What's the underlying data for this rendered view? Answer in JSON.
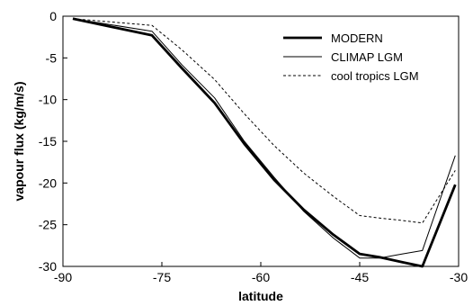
{
  "chart_data": {
    "type": "line",
    "title": "",
    "xlabel": "latitude",
    "ylabel": "vapour flux (kg/m/s)",
    "xlim": [
      -90,
      -30
    ],
    "ylim": [
      -30,
      0
    ],
    "xticks": [
      -90,
      -75,
      -60,
      -45,
      -30
    ],
    "yticks": [
      0,
      -5,
      -10,
      -15,
      -20,
      -25,
      -30
    ],
    "grid": false,
    "legend_position": "top-right",
    "series": [
      {
        "name": "MODERN",
        "style": "thick-solid",
        "color": "#000000",
        "x": [
          -88.5,
          -76.5,
          -72,
          -67,
          -62.5,
          -58,
          -53.5,
          -49,
          -45,
          -42,
          -38.5,
          -35.5,
          -30.5
        ],
        "y": [
          -0.3,
          -2.3,
          -6.2,
          -10.4,
          -15.3,
          -19.6,
          -23.2,
          -26.2,
          -28.5,
          -28.9,
          -29.5,
          -30.0,
          -20.2
        ]
      },
      {
        "name": "CLIMAP LGM",
        "style": "thin-solid",
        "color": "#000000",
        "x": [
          -88.5,
          -76.5,
          -72,
          -67,
          -62.5,
          -58,
          -53.5,
          -49,
          -45,
          -42,
          -38.5,
          -35.5,
          -30.5
        ],
        "y": [
          -0.3,
          -1.8,
          -5.8,
          -9.8,
          -15.0,
          -19.3,
          -23.4,
          -26.6,
          -29.0,
          -29.0,
          -28.5,
          -28.1,
          -16.7
        ]
      },
      {
        "name": "cool tropics LGM",
        "style": "dashed",
        "color": "#000000",
        "x": [
          -88.5,
          -76.5,
          -72,
          -67,
          -62.5,
          -58,
          -53.5,
          -49,
          -45,
          -42,
          -38.5,
          -35.5,
          -30.5
        ],
        "y": [
          -0.3,
          -1.1,
          -4.0,
          -7.6,
          -11.7,
          -15.5,
          -18.8,
          -21.6,
          -23.9,
          -24.2,
          -24.5,
          -24.8,
          -18.5
        ]
      }
    ]
  }
}
